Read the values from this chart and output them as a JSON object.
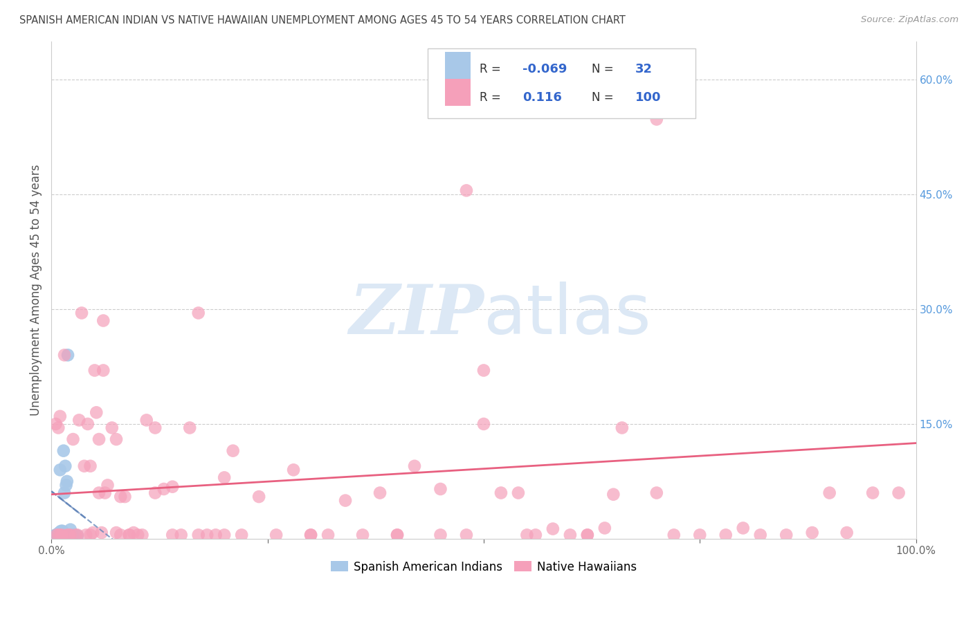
{
  "title": "SPANISH AMERICAN INDIAN VS NATIVE HAWAIIAN UNEMPLOYMENT AMONG AGES 45 TO 54 YEARS CORRELATION CHART",
  "source": "Source: ZipAtlas.com",
  "ylabel": "Unemployment Among Ages 45 to 54 years",
  "xlim": [
    0,
    1.0
  ],
  "ylim": [
    0,
    0.65
  ],
  "ytick_positions": [
    0.15,
    0.3,
    0.45,
    0.6
  ],
  "ytick_labels": [
    "15.0%",
    "30.0%",
    "45.0%",
    "60.0%"
  ],
  "xtick_positions": [
    0.0,
    1.0
  ],
  "xtick_labels": [
    "0.0%",
    "100.0%"
  ],
  "legend_R1": "-0.069",
  "legend_N1": "32",
  "legend_R2": "0.116",
  "legend_N2": "100",
  "blue_color": "#a8c8e8",
  "pink_color": "#f5a0ba",
  "blue_line_color": "#6688bb",
  "pink_line_color": "#e86080",
  "watermark_color": "#dce8f5",
  "blue_points_x": [
    0.003,
    0.004,
    0.005,
    0.005,
    0.006,
    0.006,
    0.007,
    0.007,
    0.008,
    0.008,
    0.009,
    0.009,
    0.009,
    0.01,
    0.01,
    0.01,
    0.011,
    0.011,
    0.012,
    0.012,
    0.013,
    0.013,
    0.014,
    0.015,
    0.016,
    0.017,
    0.018,
    0.019,
    0.02,
    0.022,
    0.025,
    0.03
  ],
  "blue_points_y": [
    0.003,
    0.004,
    0.003,
    0.005,
    0.003,
    0.005,
    0.004,
    0.006,
    0.004,
    0.006,
    0.004,
    0.006,
    0.008,
    0.005,
    0.007,
    0.09,
    0.007,
    0.01,
    0.006,
    0.01,
    0.008,
    0.01,
    0.115,
    0.06,
    0.095,
    0.07,
    0.075,
    0.24,
    0.005,
    0.012,
    0.005,
    0.004
  ],
  "pink_points_x": [
    0.005,
    0.006,
    0.008,
    0.008,
    0.01,
    0.01,
    0.012,
    0.015,
    0.018,
    0.02,
    0.022,
    0.025,
    0.028,
    0.03,
    0.032,
    0.035,
    0.038,
    0.04,
    0.042,
    0.045,
    0.048,
    0.05,
    0.052,
    0.055,
    0.058,
    0.06,
    0.062,
    0.065,
    0.07,
    0.075,
    0.08,
    0.085,
    0.09,
    0.095,
    0.1,
    0.105,
    0.11,
    0.12,
    0.13,
    0.14,
    0.15,
    0.16,
    0.17,
    0.18,
    0.19,
    0.2,
    0.21,
    0.22,
    0.24,
    0.26,
    0.28,
    0.3,
    0.32,
    0.34,
    0.36,
    0.38,
    0.4,
    0.42,
    0.45,
    0.48,
    0.5,
    0.52,
    0.54,
    0.56,
    0.58,
    0.6,
    0.62,
    0.64,
    0.66,
    0.7,
    0.72,
    0.75,
    0.78,
    0.8,
    0.82,
    0.85,
    0.88,
    0.9,
    0.92,
    0.95,
    0.98,
    0.055,
    0.075,
    0.045,
    0.3,
    0.06,
    0.4,
    0.65,
    0.7,
    0.5,
    0.17,
    0.2,
    0.12,
    0.14,
    0.08,
    0.09,
    0.45,
    0.48,
    0.62,
    0.55
  ],
  "pink_points_y": [
    0.15,
    0.005,
    0.005,
    0.145,
    0.005,
    0.16,
    0.005,
    0.24,
    0.005,
    0.005,
    0.005,
    0.13,
    0.005,
    0.005,
    0.155,
    0.295,
    0.095,
    0.005,
    0.15,
    0.095,
    0.008,
    0.22,
    0.165,
    0.06,
    0.008,
    0.285,
    0.06,
    0.07,
    0.145,
    0.008,
    0.055,
    0.055,
    0.005,
    0.008,
    0.005,
    0.005,
    0.155,
    0.06,
    0.065,
    0.068,
    0.005,
    0.145,
    0.295,
    0.005,
    0.005,
    0.08,
    0.115,
    0.005,
    0.055,
    0.005,
    0.09,
    0.005,
    0.005,
    0.05,
    0.005,
    0.06,
    0.005,
    0.095,
    0.065,
    0.455,
    0.15,
    0.06,
    0.06,
    0.005,
    0.013,
    0.005,
    0.005,
    0.014,
    0.145,
    0.06,
    0.005,
    0.005,
    0.005,
    0.014,
    0.005,
    0.005,
    0.008,
    0.06,
    0.008,
    0.06,
    0.06,
    0.13,
    0.13,
    0.005,
    0.005,
    0.22,
    0.005,
    0.058,
    0.548,
    0.22,
    0.005,
    0.005,
    0.145,
    0.005,
    0.005,
    0.005,
    0.005,
    0.005,
    0.005,
    0.005
  ],
  "blue_trend_x": [
    0.0,
    0.07
  ],
  "blue_trend_y_start": 0.062,
  "blue_trend_y_end": 0.0,
  "pink_trend_x": [
    0.0,
    1.0
  ],
  "pink_trend_y_start": 0.058,
  "pink_trend_y_end": 0.125
}
